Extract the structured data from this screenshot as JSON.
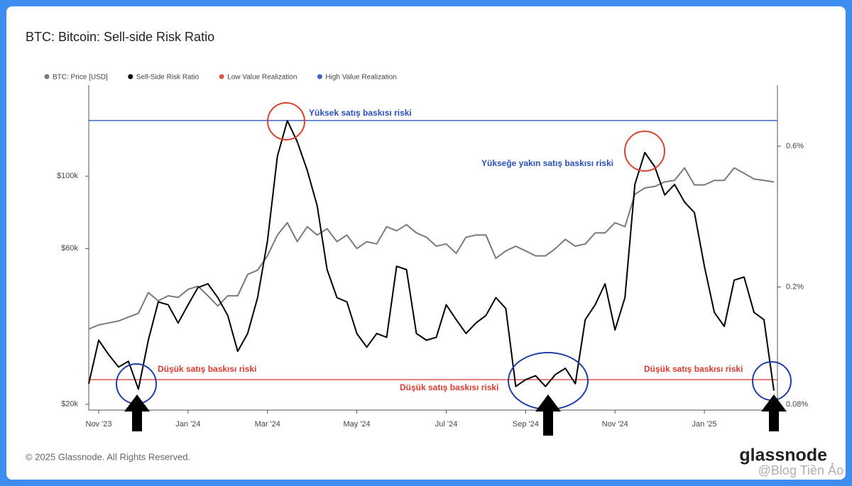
{
  "chart_data": {
    "type": "line",
    "title": "BTC: Bitcoin: Sell-side Risk Ratio",
    "categories": [
      null,
      "Nov '23",
      null,
      null,
      null,
      null,
      null,
      null,
      null,
      null,
      "Jan '24",
      null,
      null,
      null,
      null,
      null,
      null,
      null,
      "Mar '24",
      null,
      null,
      null,
      null,
      null,
      null,
      null,
      null,
      "May '24",
      null,
      null,
      null,
      null,
      null,
      null,
      null,
      null,
      "Jul '24",
      null,
      null,
      null,
      null,
      null,
      null,
      null,
      "Sep '24",
      null,
      null,
      null,
      null,
      null,
      null,
      null,
      null,
      "Nov '24",
      null,
      null,
      null,
      null,
      null,
      null,
      null,
      null,
      "Jan '25",
      null,
      null,
      null,
      null,
      null,
      null,
      null
    ],
    "series": [
      {
        "name": "BTC: Price [USD]",
        "color": "#7a7a7a",
        "axis": "y",
        "values": [
          34000,
          35000,
          35500,
          36000,
          37000,
          38000,
          44000,
          41500,
          43000,
          42500,
          45000,
          46000,
          43000,
          40000,
          43000,
          43000,
          50000,
          51500,
          57000,
          66000,
          72000,
          63000,
          70000,
          66000,
          69000,
          63000,
          66000,
          60000,
          63000,
          62000,
          70000,
          68000,
          71000,
          67000,
          65000,
          61000,
          62000,
          58000,
          65000,
          66000,
          66000,
          56000,
          59000,
          61000,
          59000,
          57000,
          57000,
          60000,
          64000,
          61000,
          62000,
          67000,
          67000,
          72000,
          70000,
          88000,
          92000,
          93000,
          96000,
          97000,
          106000,
          94000,
          94000,
          97000,
          97000,
          106000,
          102000,
          98000,
          97000,
          96000
        ]
      },
      {
        "name": "Sell-Side Risk Ratio",
        "color": "#000000",
        "axis": "y2",
        "values": [
          0.094,
          0.132,
          0.118,
          0.107,
          0.112,
          0.09,
          0.132,
          0.178,
          0.174,
          0.151,
          0.174,
          0.199,
          0.205,
          0.184,
          0.16,
          0.121,
          0.139,
          0.184,
          0.286,
          0.555,
          0.732,
          0.621,
          0.497,
          0.377,
          0.229,
          0.184,
          0.178,
          0.139,
          0.125,
          0.139,
          0.135,
          0.235,
          0.229,
          0.139,
          0.132,
          0.135,
          0.174,
          0.155,
          0.139,
          0.151,
          0.16,
          0.184,
          0.169,
          0.092,
          0.097,
          0.1,
          0.092,
          0.101,
          0.106,
          0.094,
          0.155,
          0.174,
          0.205,
          0.143,
          0.184,
          0.445,
          0.571,
          0.511,
          0.41,
          0.445,
          0.388,
          0.357,
          0.235,
          0.164,
          0.147,
          0.211,
          0.216,
          0.164,
          0.155,
          0.089
        ]
      }
    ],
    "reference_lines": [
      {
        "name": "Low Value Realization",
        "color": "#e0574c",
        "axis": "y2",
        "value": 0.097
      },
      {
        "name": "High Value Realization",
        "color": "#3f64c8",
        "axis": "y2",
        "value": 0.733
      }
    ],
    "ylog": true,
    "ylim": [
      19200,
      190000
    ],
    "yticks": [
      {
        "value": 20000,
        "label": "$20k"
      },
      {
        "value": 60000,
        "label": "$60k"
      },
      {
        "value": 100000,
        "label": "$100k"
      }
    ],
    "y2log": true,
    "y2lim": [
      0.0765,
      0.966
    ],
    "y2ticks": [
      {
        "value": 0.08,
        "label": "0.08%"
      },
      {
        "value": 0.2,
        "label": "0.2%"
      },
      {
        "value": 0.6,
        "label": "0.6%"
      }
    ],
    "grid": false,
    "annotations": [
      {
        "text": "Yüksek satış baskısı riski",
        "color": "#2b4fc0"
      },
      {
        "text": "Yükseğe yakın satış baskısı riski",
        "color": "#2b4fc0"
      },
      {
        "text": "Düşük satış baskısı riski",
        "color": "#e0392e"
      },
      {
        "text": "Düşük satış baskısı riski",
        "color": "#e0392e"
      },
      {
        "text": "Düşük satış baskısı riski",
        "color": "#e0392e"
      }
    ]
  },
  "footer": "© 2025 Glassnode. All Rights Reserved.",
  "logo": "glassnode",
  "watermark": "@Blog Tiền Ảo"
}
